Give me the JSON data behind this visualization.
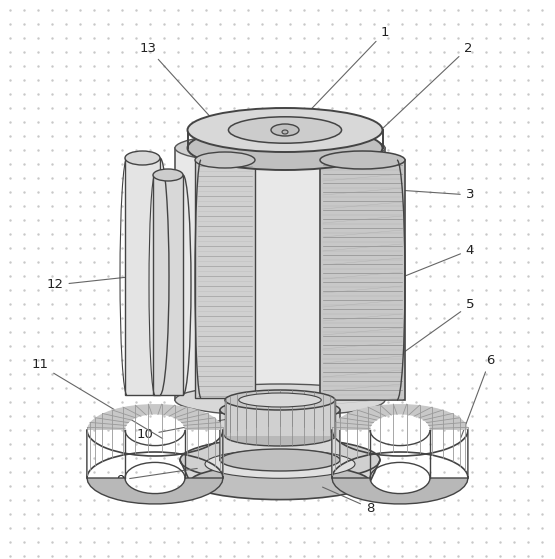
{
  "bg_dot_color": "#c8c8c8",
  "line_color": "#555555",
  "dark_line": "#444444",
  "fill_cylinder": "#e0e0e0",
  "fill_disc_top": "#d8d8d8",
  "fill_disc_side": "#c0c0c0",
  "fill_filter": "#c8c8c8",
  "fill_filter_dark": "#aaaaaa",
  "fill_foot": "#c0c0c0",
  "fill_blade": "#e4e4e4",
  "fill_base": "#d0d0d0",
  "hatch_lines": "#888888",
  "label_color": "#222222",
  "label_fontsize": 9.5,
  "arrow_color": "#666666"
}
